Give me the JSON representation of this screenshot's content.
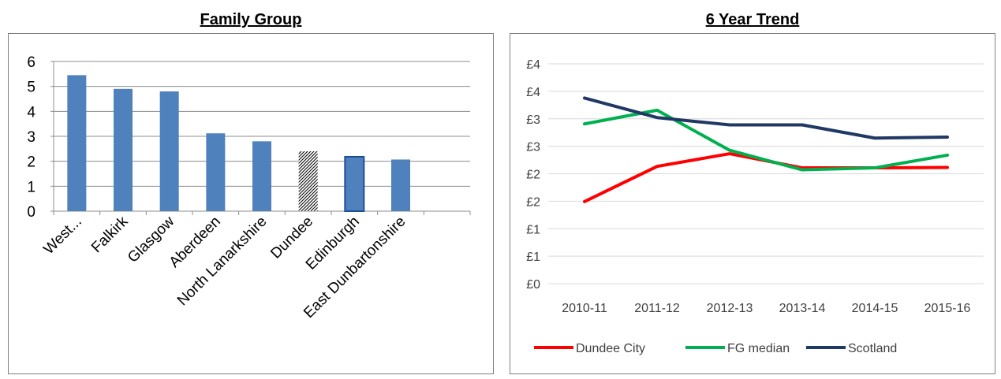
{
  "chart_data": [
    {
      "type": "bar",
      "title": "Family Group",
      "categories": [
        "West...",
        "Falkirk",
        "Glasgow",
        "Aberdeen",
        "North Lanarkshire",
        "Dundee",
        "Edinburgh",
        "East Dunbartonshire",
        ""
      ],
      "values": [
        5.45,
        4.9,
        4.8,
        3.12,
        2.8,
        2.4,
        2.18,
        2.07,
        null
      ],
      "highlight": {
        "Dundee": "hatched",
        "Edinburgh": "outlined"
      },
      "ylim": [
        0,
        6
      ],
      "yticks": [
        "0",
        "1",
        "2",
        "3",
        "4",
        "5",
        "6"
      ],
      "grid": true,
      "bar_color": "#4f81bd"
    },
    {
      "type": "line",
      "title": "6 Year Trend",
      "x": [
        "2010-11",
        "2011-12",
        "2012-13",
        "2013-14",
        "2014-15",
        "2015-16"
      ],
      "ylim": [
        0,
        4.5
      ],
      "yticks": [
        "£0",
        "£1",
        "£1",
        "£2",
        "£2",
        "£3",
        "£3",
        "£4",
        "£4"
      ],
      "grid": true,
      "legend_position": "bottom",
      "series": [
        {
          "name": "Dundee City",
          "color": "#ff0000",
          "values": [
            1.68,
            2.4,
            2.66,
            2.37,
            2.37,
            2.38
          ]
        },
        {
          "name": "FG median",
          "color": "#00b050",
          "values": [
            3.27,
            3.55,
            2.73,
            2.33,
            2.37,
            2.63
          ]
        },
        {
          "name": "Scotland",
          "color": "#1f3864",
          "values": [
            3.8,
            3.4,
            3.25,
            3.25,
            2.98,
            3.0
          ]
        }
      ]
    }
  ]
}
